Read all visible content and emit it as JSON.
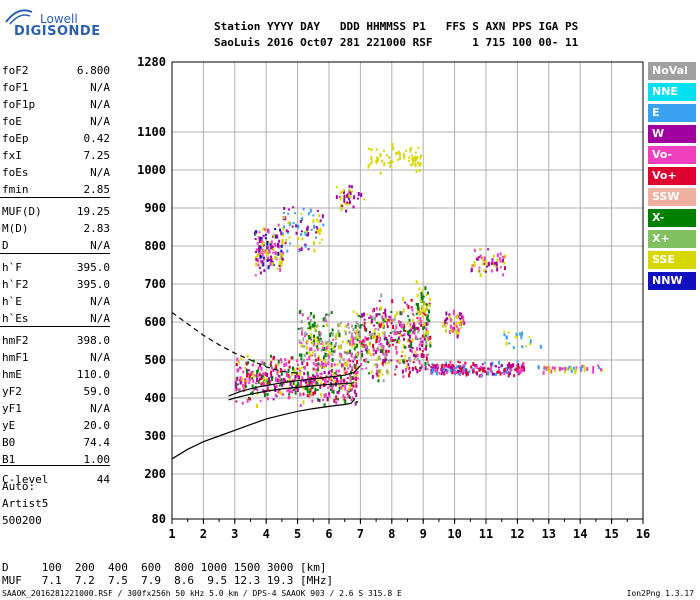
{
  "logo": {
    "brand": "Lowell",
    "product": "DIGISONDE"
  },
  "header": {
    "labels": "Station YYYY DAY   DDD HHMMSS P1   FFS S AXN PPS IGA PS",
    "values": "SaoLuis 2016 Oct07 281 221000 RSF      1 715 100 00- 11"
  },
  "params": [
    {
      "name": "foF2",
      "value": "6.800"
    },
    {
      "name": "foF1",
      "value": "N/A"
    },
    {
      "name": "foF1p",
      "value": "N/A"
    },
    {
      "name": "foE",
      "value": "N/A"
    },
    {
      "name": "foEp",
      "value": "0.42"
    },
    {
      "name": "fxI",
      "value": "7.25"
    },
    {
      "name": "foEs",
      "value": "N/A"
    },
    {
      "name": "fmin",
      "value": "2.85"
    },
    {
      "name": "MUF(D)",
      "value": "19.25"
    },
    {
      "name": "M(D)",
      "value": "2.83"
    },
    {
      "name": "D",
      "value": "N/A"
    },
    {
      "name": "h`F",
      "value": "395.0"
    },
    {
      "name": "h`F2",
      "value": "395.0"
    },
    {
      "name": "h`E",
      "value": "N/A"
    },
    {
      "name": "h`Es",
      "value": "N/A"
    },
    {
      "name": "hmF2",
      "value": "398.0"
    },
    {
      "name": "hmF1",
      "value": "N/A"
    },
    {
      "name": "hmE",
      "value": "110.0"
    },
    {
      "name": "yF2",
      "value": "59.0"
    },
    {
      "name": "yF1",
      "value": "N/A"
    },
    {
      "name": "yE",
      "value": "20.0"
    },
    {
      "name": "B0",
      "value": "74.4"
    },
    {
      "name": "B1",
      "value": "1.00"
    },
    {
      "name": "C-level",
      "value": "44"
    }
  ],
  "auto": {
    "label": "Auto:",
    "artist": "Artist5",
    "version": "500200"
  },
  "legend": [
    {
      "label": "NoVal",
      "bg": "#a0a0a0",
      "fg": "#ffffff"
    },
    {
      "label": "NNE",
      "bg": "#00e0f0",
      "fg": "#ffffff"
    },
    {
      "label": "E",
      "bg": "#3aa0f0",
      "fg": "#ffffff"
    },
    {
      "label": "W",
      "bg": "#a000a0",
      "fg": "#ffffff"
    },
    {
      "label": "Vo-",
      "bg": "#f040c0",
      "fg": "#ffffff"
    },
    {
      "label": "Vo+",
      "bg": "#e00030",
      "fg": "#ffffff"
    },
    {
      "label": "SSW",
      "bg": "#f0b0a0",
      "fg": "#ffffff"
    },
    {
      "label": "X-",
      "bg": "#008000",
      "fg": "#ffffff"
    },
    {
      "label": "X+",
      "bg": "#80c060",
      "fg": "#ffffff"
    },
    {
      "label": "SSE",
      "bg": "#d8d800",
      "fg": "#ffffff"
    },
    {
      "label": "NNW",
      "bg": "#1010c0",
      "fg": "#ffffff"
    }
  ],
  "footer": {
    "d_row": "D     100  200  400  600  800 1000 1500 3000 [km]",
    "muf_row": "MUF   7.1  7.2  7.5  7.9  8.6  9.5 12.3 19.3 [MHz]",
    "file_info": "SAAOK_2016281221000.RSF / 300fx256h 50 kHz 5.0 km / DPS-4 SAAOK 903 / 2.6 S 315.8 E",
    "program": "Ion2Png 1.3.17"
  },
  "chart_data": {
    "type": "scatter",
    "title": "",
    "xlabel": "",
    "ylabel": "",
    "x_ticks": [
      "1",
      "2",
      "3",
      "4",
      "5",
      "6",
      "7",
      "8",
      "9",
      "10",
      "11",
      "12",
      "13",
      "14",
      "15",
      "16"
    ],
    "y_ticks": [
      "80",
      "200",
      "300",
      "400",
      "500",
      "600",
      "700",
      "800",
      "900",
      "1000",
      "1100",
      "1280"
    ],
    "xlim": [
      1,
      16
    ],
    "y_scale": "nonlinear",
    "grid": true,
    "curves": [
      {
        "name": "",
        "style": "solid",
        "x": [
          1.0,
          1.5,
          2.0,
          2.5,
          3.0,
          3.5,
          4.0,
          4.5,
          5.0,
          5.5,
          6.0,
          6.5,
          6.7,
          6.8,
          6.8
        ],
        "y": [
          240,
          265,
          285,
          300,
          315,
          330,
          345,
          355,
          365,
          372,
          378,
          383,
          386,
          395,
          400
        ]
      },
      {
        "name": "",
        "style": "dashed",
        "x": [
          1.0,
          1.5,
          2.0,
          2.5,
          3.0,
          3.5,
          4.0,
          4.5,
          5.0
        ],
        "y": [
          625,
          595,
          565,
          540,
          518,
          500,
          482,
          470,
          465
        ]
      },
      {
        "name": "",
        "style": "solid",
        "x": [
          2.8,
          3.0,
          3.5,
          4.0,
          4.5,
          5.0,
          5.5,
          6.0,
          6.5,
          6.8
        ],
        "y": [
          395,
          400,
          410,
          418,
          424,
          428,
          432,
          436,
          438,
          440
        ]
      },
      {
        "name": "",
        "style": "solid",
        "x": [
          2.8,
          3.2,
          3.8,
          4.5,
          5.2,
          6.0,
          6.5,
          6.8,
          7.0
        ],
        "y": [
          405,
          418,
          430,
          440,
          448,
          455,
          460,
          468,
          485
        ]
      }
    ],
    "clusters": [
      {
        "x": [
          3.0,
          6.9
        ],
        "y": [
          380,
          520
        ],
        "colors": [
          "#f040c0",
          "#e00030",
          "#f040c0",
          "#a000a0",
          "#d8d800",
          "#008000"
        ],
        "count": 520
      },
      {
        "x": [
          5.0,
          7.0
        ],
        "y": [
          470,
          640
        ],
        "colors": [
          "#d8d800",
          "#f040c0",
          "#a0a0a0",
          "#008000"
        ],
        "count": 260
      },
      {
        "x": [
          7.0,
          9.2
        ],
        "y": [
          440,
          680
        ],
        "colors": [
          "#f040c0",
          "#e00030",
          "#d8d800",
          "#008000",
          "#a000a0",
          "#a0a0a0"
        ],
        "count": 420
      },
      {
        "x": [
          9.2,
          12.2
        ],
        "y": [
          460,
          500
        ],
        "colors": [
          "#f040c0",
          "#e00030",
          "#a000a0",
          "#3aa0f0"
        ],
        "count": 230
      },
      {
        "x": [
          12.5,
          14.8
        ],
        "y": [
          470,
          490
        ],
        "colors": [
          "#f040c0",
          "#3aa0f0",
          "#d8d800"
        ],
        "count": 50
      },
      {
        "x": [
          3.6,
          4.5
        ],
        "y": [
          720,
          860
        ],
        "colors": [
          "#a000a0",
          "#d8d800",
          "#1010c0",
          "#f040c0"
        ],
        "count": 150
      },
      {
        "x": [
          4.5,
          5.8
        ],
        "y": [
          780,
          920
        ],
        "colors": [
          "#d8d800",
          "#a000a0",
          "#3aa0f0"
        ],
        "count": 80
      },
      {
        "x": [
          6.2,
          7.1
        ],
        "y": [
          880,
          980
        ],
        "colors": [
          "#d8d800",
          "#a000a0"
        ],
        "count": 40
      },
      {
        "x": [
          7.2,
          8.9
        ],
        "y": [
          990,
          1080
        ],
        "colors": [
          "#d8d800"
        ],
        "count": 60
      },
      {
        "x": [
          9.6,
          10.3
        ],
        "y": [
          560,
          640
        ],
        "colors": [
          "#a000a0",
          "#d8d800",
          "#f040c0"
        ],
        "count": 60
      },
      {
        "x": [
          10.5,
          11.6
        ],
        "y": [
          720,
          800
        ],
        "colors": [
          "#a000a0",
          "#f040c0",
          "#d8d800"
        ],
        "count": 60
      },
      {
        "x": [
          8.7,
          9.2
        ],
        "y": [
          580,
          720
        ],
        "colors": [
          "#d8d800",
          "#008000"
        ],
        "count": 40
      },
      {
        "x": [
          11.5,
          12.8
        ],
        "y": [
          520,
          600
        ],
        "colors": [
          "#d8d800",
          "#3aa0f0"
        ],
        "count": 20
      }
    ]
  }
}
